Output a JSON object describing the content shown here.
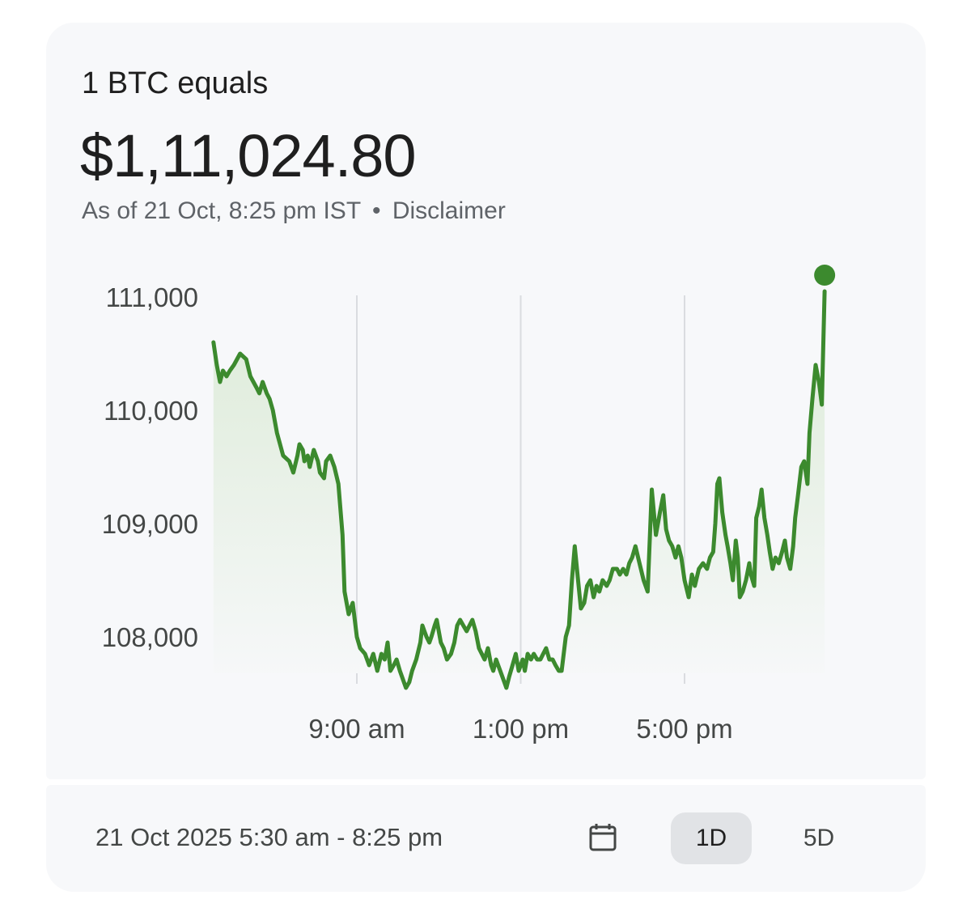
{
  "header": {
    "label": "1 BTC equals",
    "price": "$1,11,024.80",
    "as_of": "As of 21 Oct, 8:25 pm IST",
    "separator": "•",
    "disclaimer": "Disclaimer"
  },
  "colors": {
    "line": "#3c8a2e",
    "fill": "#e6efe3",
    "grid": "#dadce0",
    "text": "#1f1f1f",
    "secondary_text": "#5f6368"
  },
  "chart_data": {
    "type": "line",
    "ylim": [
      107400,
      111200
    ],
    "y_ticks": [
      108000,
      109000,
      110000,
      111000
    ],
    "y_tick_labels": [
      "108,000",
      "109,000",
      "110,000",
      "111,000"
    ],
    "x_range_hours": [
      5.5,
      20.4167
    ],
    "x_ticks": [
      9,
      13,
      17
    ],
    "x_tick_labels": [
      "9:00 am",
      "1:00 pm",
      "5:00 pm"
    ],
    "grid": "vertical",
    "series": [
      {
        "x": [
          5.5,
          5.58,
          5.66,
          5.73,
          5.82,
          5.9,
          6.0,
          6.15,
          6.3,
          6.4,
          6.55,
          6.62,
          6.7,
          6.8,
          6.87,
          6.95,
          7.05,
          7.2,
          7.35,
          7.45,
          7.55,
          7.6,
          7.68,
          7.72,
          7.8,
          7.85,
          7.95,
          8.05,
          8.1,
          8.2,
          8.25,
          8.35,
          8.45,
          8.55,
          8.65,
          8.7,
          8.8,
          8.9,
          9.0,
          9.08,
          9.2,
          9.3,
          9.4,
          9.5,
          9.6,
          9.68,
          9.75,
          9.82,
          9.9,
          9.97,
          10.05,
          10.15,
          10.2,
          10.28,
          10.35,
          10.45,
          10.55,
          10.6,
          10.65,
          10.7,
          10.77,
          10.82,
          10.9,
          10.95,
          11.05,
          11.12,
          11.2,
          11.3,
          11.38,
          11.45,
          11.52,
          11.6,
          11.68,
          11.75,
          11.82,
          11.9,
          11.98,
          12.05,
          12.12,
          12.2,
          12.28,
          12.33,
          12.4,
          12.5,
          12.6,
          12.65,
          12.72,
          12.8,
          12.88,
          12.95,
          13.05,
          13.1,
          13.17,
          13.25,
          13.32,
          13.4,
          13.48,
          13.55,
          13.62,
          13.7,
          13.78,
          13.85,
          13.93,
          14.0,
          14.1,
          14.18,
          14.25,
          14.32,
          14.4,
          14.47,
          14.55,
          14.62,
          14.7,
          14.78,
          14.85,
          14.92,
          15.0,
          15.1,
          15.17,
          15.25,
          15.35,
          15.42,
          15.5,
          15.58,
          15.65,
          15.72,
          15.8,
          15.9,
          16.0,
          16.1,
          16.2,
          16.3,
          16.4,
          16.48,
          16.55,
          16.62,
          16.7,
          16.78,
          16.85,
          16.92,
          17.0,
          17.1,
          17.18,
          17.25,
          17.35,
          17.45,
          17.55,
          17.62,
          17.7,
          17.75,
          17.8,
          17.85,
          17.92,
          18.0,
          18.05,
          18.12,
          18.18,
          18.25,
          18.3,
          18.35,
          18.42,
          18.5,
          18.58,
          18.62,
          18.7,
          18.75,
          18.82,
          18.88,
          18.95,
          19.02,
          19.08,
          19.15,
          19.22,
          19.3,
          19.38,
          19.45,
          19.5,
          19.58,
          19.65,
          19.7,
          19.77,
          19.85,
          19.92,
          20.0,
          20.05,
          20.12,
          20.2,
          20.28,
          20.35,
          20.42
        ],
        "y": [
          110600,
          110400,
          110250,
          110350,
          110300,
          110350,
          110400,
          110500,
          110450,
          110300,
          110200,
          110150,
          110250,
          110150,
          110100,
          110000,
          109800,
          109600,
          109550,
          109450,
          109600,
          109700,
          109650,
          109550,
          109600,
          109500,
          109650,
          109550,
          109450,
          109400,
          109550,
          109600,
          109500,
          109350,
          108900,
          108400,
          108200,
          108300,
          108000,
          107900,
          107850,
          107750,
          107850,
          107700,
          107850,
          107800,
          107950,
          107700,
          107750,
          107800,
          107700,
          107600,
          107550,
          107600,
          107700,
          107800,
          107950,
          108100,
          108050,
          108000,
          107950,
          108000,
          108100,
          108150,
          107950,
          107900,
          107800,
          107850,
          107950,
          108100,
          108150,
          108100,
          108050,
          108100,
          108150,
          108050,
          107900,
          107850,
          107800,
          107900,
          107750,
          107700,
          107800,
          107700,
          107600,
          107550,
          107650,
          107750,
          107850,
          107700,
          107800,
          107700,
          107850,
          107800,
          107850,
          107800,
          107800,
          107850,
          107900,
          107800,
          107800,
          107750,
          107700,
          107700,
          108000,
          108100,
          108500,
          108800,
          108500,
          108250,
          108300,
          108450,
          108500,
          108350,
          108450,
          108400,
          108500,
          108450,
          108500,
          108600,
          108600,
          108550,
          108600,
          108550,
          108650,
          108700,
          108800,
          108650,
          108500,
          108400,
          109300,
          108900,
          109100,
          109250,
          108950,
          108850,
          108800,
          108700,
          108800,
          108700,
          108500,
          108350,
          108550,
          108450,
          108600,
          108650,
          108600,
          108700,
          108750,
          109000,
          109350,
          109400,
          109100,
          108900,
          108800,
          108650,
          108500,
          108850,
          108700,
          108350,
          108400,
          108500,
          108650,
          108550,
          108450,
          109050,
          109150,
          109300,
          109050,
          108900,
          108750,
          108600,
          108700,
          108650,
          108750,
          108850,
          108700,
          108600,
          108800,
          109050,
          109250,
          109500,
          109550,
          109350,
          109800,
          110100,
          110400,
          110250,
          110050,
          111050
        ]
      }
    ]
  },
  "footer": {
    "date_range": "21 Oct 2025 5:30 am - 8:25 pm",
    "periods": [
      {
        "label": "1D",
        "active": true
      },
      {
        "label": "5D",
        "active": false
      }
    ]
  }
}
